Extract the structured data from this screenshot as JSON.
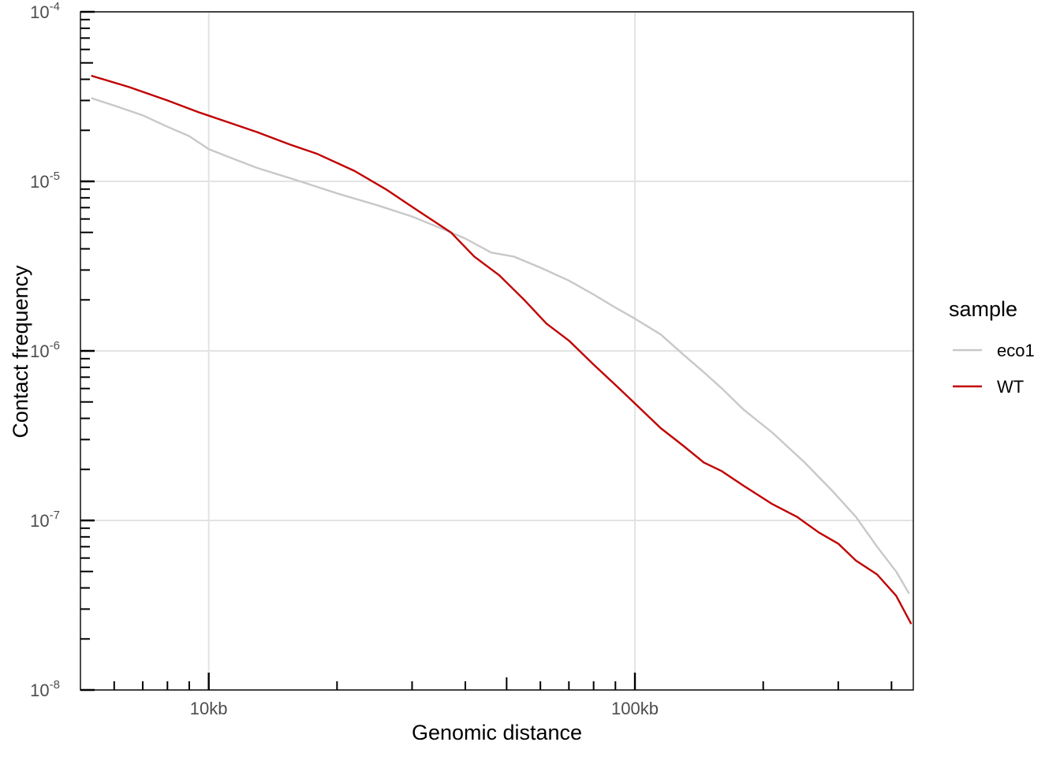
{
  "chart_data": {
    "type": "line",
    "xlabel": "Genomic distance",
    "ylabel": "Contact frequency",
    "x_scale": "log10",
    "y_scale": "log10",
    "xlim": [
      5000,
      450000
    ],
    "ylim": [
      1e-08,
      0.0001
    ],
    "x_ticks": [
      {
        "value": 10000,
        "label": "10kb"
      },
      {
        "value": 100000,
        "label": "100kb"
      }
    ],
    "y_ticks": [
      {
        "value": 0.0001,
        "base": "10",
        "exp": "-4"
      },
      {
        "value": 1e-05,
        "base": "10",
        "exp": "-5"
      },
      {
        "value": 1e-06,
        "base": "10",
        "exp": "-6"
      },
      {
        "value": 1e-07,
        "base": "10",
        "exp": "-7"
      },
      {
        "value": 1e-08,
        "base": "10",
        "exp": "-8"
      }
    ],
    "grid": true,
    "legend": {
      "title": "sample",
      "position": "right"
    },
    "series": [
      {
        "name": "eco1",
        "color": "#c8c8c8",
        "points": [
          [
            5300,
            3.1e-05
          ],
          [
            6000,
            2.8e-05
          ],
          [
            7000,
            2.45e-05
          ],
          [
            8000,
            2.1e-05
          ],
          [
            9000,
            1.85e-05
          ],
          [
            10000,
            1.55e-05
          ],
          [
            11500,
            1.35e-05
          ],
          [
            13000,
            1.2e-05
          ],
          [
            16000,
            1.02e-05
          ],
          [
            20000,
            8.5e-06
          ],
          [
            25000,
            7.2e-06
          ],
          [
            30000,
            6.2e-06
          ],
          [
            35000,
            5.3e-06
          ],
          [
            40000,
            4.6e-06
          ],
          [
            46000,
            3.8e-06
          ],
          [
            52000,
            3.6e-06
          ],
          [
            60000,
            3.1e-06
          ],
          [
            70000,
            2.6e-06
          ],
          [
            80000,
            2.15e-06
          ],
          [
            90000,
            1.8e-06
          ],
          [
            100000,
            1.55e-06
          ],
          [
            115000,
            1.25e-06
          ],
          [
            130000,
            9.5e-07
          ],
          [
            145000,
            7.5e-07
          ],
          [
            160000,
            6e-07
          ],
          [
            180000,
            4.5e-07
          ],
          [
            210000,
            3.3e-07
          ],
          [
            250000,
            2.2e-07
          ],
          [
            290000,
            1.5e-07
          ],
          [
            330000,
            1.05e-07
          ],
          [
            370000,
            7e-08
          ],
          [
            410000,
            5e-08
          ],
          [
            440000,
            3.7e-08
          ]
        ]
      },
      {
        "name": "WT",
        "color": "#c00000",
        "points": [
          [
            5300,
            4.2e-05
          ],
          [
            6500,
            3.6e-05
          ],
          [
            8000,
            3e-05
          ],
          [
            9500,
            2.55e-05
          ],
          [
            11000,
            2.25e-05
          ],
          [
            13000,
            1.95e-05
          ],
          [
            15500,
            1.65e-05
          ],
          [
            18000,
            1.45e-05
          ],
          [
            22000,
            1.15e-05
          ],
          [
            26000,
            9e-06
          ],
          [
            31000,
            6.7e-06
          ],
          [
            37000,
            5e-06
          ],
          [
            42000,
            3.6e-06
          ],
          [
            48000,
            2.8e-06
          ],
          [
            55000,
            2e-06
          ],
          [
            62000,
            1.45e-06
          ],
          [
            70000,
            1.15e-06
          ],
          [
            80000,
            8.3e-07
          ],
          [
            90000,
            6.3e-07
          ],
          [
            100000,
            4.9e-07
          ],
          [
            115000,
            3.5e-07
          ],
          [
            130000,
            2.75e-07
          ],
          [
            145000,
            2.2e-07
          ],
          [
            160000,
            1.95e-07
          ],
          [
            180000,
            1.6e-07
          ],
          [
            210000,
            1.25e-07
          ],
          [
            240000,
            1.05e-07
          ],
          [
            270000,
            8.5e-08
          ],
          [
            300000,
            7.3e-08
          ],
          [
            330000,
            5.8e-08
          ],
          [
            370000,
            4.8e-08
          ],
          [
            410000,
            3.6e-08
          ],
          [
            445000,
            2.45e-08
          ]
        ]
      }
    ]
  }
}
